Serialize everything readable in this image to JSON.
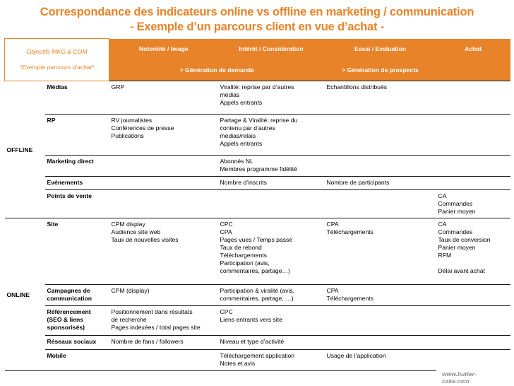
{
  "title": {
    "line1": "Correspondance des indicateurs online vs offline en marketing / communication",
    "line2": "- Exemple d’un parcours client en vue d’achat -"
  },
  "header": {
    "objectifs_line1": "Objectifs MKG & COM",
    "objectifs_line2": "*Exemple parcours d’achat*",
    "col_notoriete": "Notoriété / Image",
    "col_interet": "Intérêt / Considération",
    "col_essai": "Essai / Evaluation",
    "col_achat": "Achat",
    "gen_demande": "> Génération de demande",
    "gen_prospects": "> Génération de prospects"
  },
  "offline": {
    "label": "OFFLINE",
    "rows": [
      {
        "label": "Médias",
        "notoriete": "GRP",
        "interet": "Viralité: reprise par d’autres\nmédias\nAppels entrants",
        "essai": "Echantillons distribués",
        "achat": ""
      },
      {
        "label": "RP",
        "notoriete": "RV journalistes\nConférences de presse\nPublications",
        "interet": "Partage & Viralité: reprise du\ncontenu par d’autres\nmédias/relais\nAppels entrants",
        "essai": "",
        "achat": ""
      },
      {
        "label": "Marketing direct",
        "notoriete": "",
        "interet": "Abonnés NL\nMembres programme fidélité",
        "essai": "",
        "achat": ""
      },
      {
        "label": "Evénements",
        "notoriete": "",
        "interet": "Nombre d’inscrits",
        "essai": "Nombre de participants",
        "achat": ""
      },
      {
        "label": "Points de vente",
        "notoriete": "",
        "interet": "",
        "essai": "",
        "achat": "CA\nCommandes\nPanier moyen"
      }
    ]
  },
  "online": {
    "label": "ONLINE",
    "rows": [
      {
        "label": "Site",
        "notoriete": "CPM display\nAudience site web\nTaux de nouvelles visites",
        "interet": "CPC\nCPA\nPages vues / Temps passé\nTaux de rebond\nTéléchargements\nParticipation (avis,\ncommentaires, partage…)",
        "essai": "CPA\nTéléchargements",
        "achat": "CA\nCommandes\nTaux de conversion\nPanier moyen\nRFM\n\nDélai avant achat"
      },
      {
        "label": "Campagnes de\ncommunication",
        "notoriete": "CPM (display)",
        "interet": "Participation & viralité (avis,\ncommentaires, partage, …)",
        "essai": "CPA\nTéléchargements",
        "achat": ""
      },
      {
        "label": "Référencement\n(SEO & liens\nsponsorisés)",
        "notoriete": "Positionnement dans résultats\nde recherche\nPages indexées / total pages site",
        "interet": "CPC\nLiens entrants vers site",
        "essai": "",
        "achat": ""
      },
      {
        "label": "Réseaux sociaux",
        "notoriete": "Nombre de fans / followers",
        "interet": "Niveau et type d’activité",
        "essai": "",
        "achat": ""
      },
      {
        "label": "Mobile",
        "notoriete": "",
        "interet": "Téléchargement application\nNotes et avis",
        "essai": "Usage de l’application",
        "achat": ""
      }
    ]
  },
  "footer": {
    "url": "www.butter-\ncake.com"
  },
  "colors": {
    "accent": "#e8832a",
    "url_gray": "#8c8c8c"
  }
}
